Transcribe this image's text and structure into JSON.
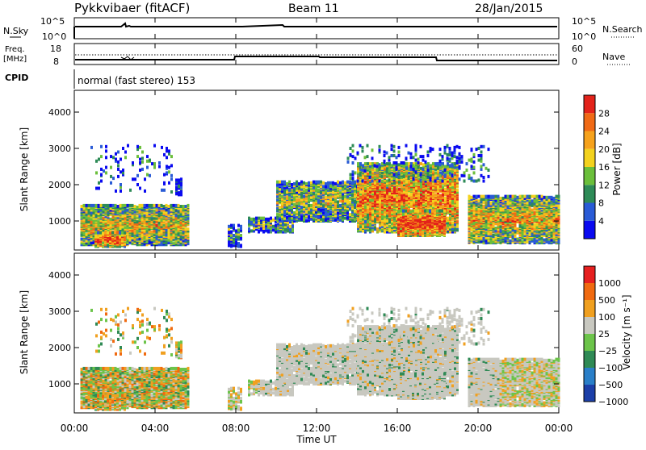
{
  "header": {
    "site": "Pykkvibaer (fitACF)",
    "beam": "Beam 11",
    "date": "28/Jan/2015"
  },
  "nsky_panel": {
    "left_label": "N.Sky",
    "right_label": "N.Search",
    "ticks": [
      "10^5",
      "10^0"
    ]
  },
  "freq_panel": {
    "left_label_1": "Freq.",
    "left_label_2": "[MHz]",
    "left_ticks": [
      "18",
      "8"
    ],
    "right_label": "Nave",
    "right_ticks": [
      "60",
      "0"
    ]
  },
  "cpid": {
    "label": "CPID",
    "value": "normal (fast stereo) 153"
  },
  "chart_data": [
    {
      "type": "heatmap",
      "name": "power",
      "ylabel": "Slant Range [km]",
      "xlabel": "Time UT",
      "ylim": [
        200,
        4600
      ],
      "xlim": [
        0,
        24
      ],
      "y_ticks": [
        "1000",
        "2000",
        "3000",
        "4000"
      ],
      "x_ticks": [
        "00:00",
        "04:00",
        "08:00",
        "12:00",
        "16:00",
        "20:00",
        "00:00"
      ],
      "colorbar": {
        "label": "Power [dB]",
        "ticks": [
          "4",
          "8",
          "12",
          "16",
          "20",
          "24",
          "28"
        ],
        "colors": [
          "#0a0af0",
          "#2a5bd6",
          "#2e8b57",
          "#6bbf3b",
          "#f3d21e",
          "#f6a21c",
          "#f06a16",
          "#e3231b"
        ]
      }
    },
    {
      "type": "heatmap",
      "name": "velocity",
      "ylabel": "Slant Range [km]",
      "xlabel": "Time UT",
      "ylim": [
        200,
        4600
      ],
      "xlim": [
        0,
        24
      ],
      "y_ticks": [
        "1000",
        "2000",
        "3000",
        "4000"
      ],
      "x_ticks": [
        "00:00",
        "04:00",
        "08:00",
        "12:00",
        "16:00",
        "20:00",
        "00:00"
      ],
      "colorbar": {
        "label": "Velocity [m s⁻¹]",
        "ticks": [
          "1000",
          "500",
          "100",
          "25",
          "−25",
          "−100",
          "−500",
          "−1000"
        ],
        "colors": [
          "#1c3fa8",
          "#2a7fc8",
          "#2f8a55",
          "#6cc44a",
          "#c8c8c0",
          "#f0a020",
          "#f06a10",
          "#e62020"
        ]
      }
    }
  ]
}
